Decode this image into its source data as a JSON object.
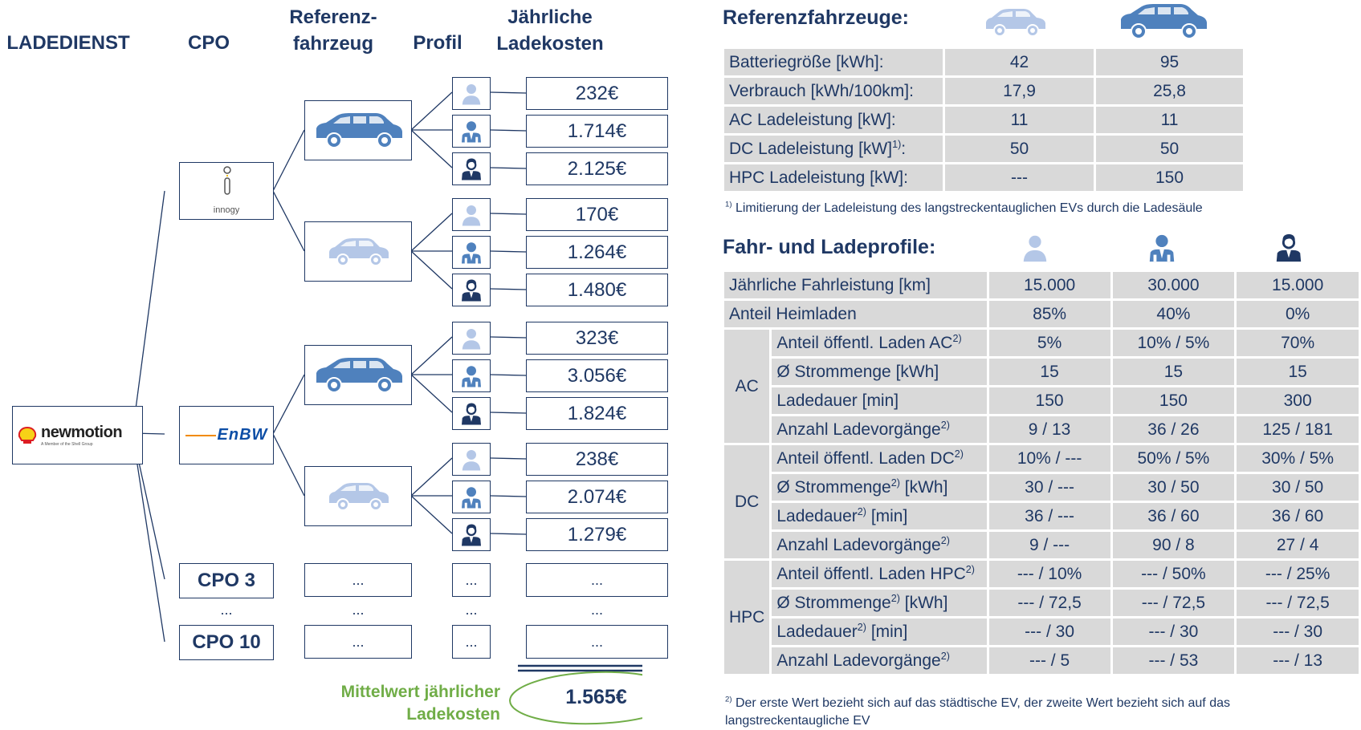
{
  "headers": {
    "ladedienst": "LADEDIENST",
    "cpo": "CPO",
    "fahrzeug": "Referenz-\nfahrzeug",
    "profil": "Profil",
    "kosten": "Jährliche\nLadekosten"
  },
  "ladedienst_logo": {
    "name": "newmotion",
    "tagline": "A Member of the Shell Group"
  },
  "cpos": [
    {
      "logo": "innogy"
    },
    {
      "logo": "EnBW"
    },
    {
      "label": "CPO 3"
    },
    {
      "label": "CPO 10"
    }
  ],
  "dots": "...",
  "costs": [
    "232€",
    "1.714€",
    "2.125€",
    "170€",
    "1.264€",
    "1.480€",
    "323€",
    "3.056€",
    "1.824€",
    "238€",
    "2.074€",
    "1.279€"
  ],
  "mean": {
    "label": "Mittelwert jährlicher\nLadekosten",
    "value": "1.565€"
  },
  "vehicles_table": {
    "title": "Referenzfahrzeuge:",
    "rows": [
      {
        "label": "Batteriegröße [kWh]:",
        "values": [
          "42",
          "95"
        ]
      },
      {
        "label": "Verbrauch [kWh/100km]:",
        "values": [
          "17,9",
          "25,8"
        ]
      },
      {
        "label": "AC Ladeleistung [kW]:",
        "values": [
          "11",
          "11"
        ]
      },
      {
        "label": "DC Ladeleistung [kW]",
        "sup": "1)",
        "suffix": ":",
        "values": [
          "50",
          "50"
        ]
      },
      {
        "label": "HPC Ladeleistung [kW]:",
        "values": [
          "---",
          "150"
        ]
      }
    ],
    "footnote_mark": "1)",
    "footnote": " Limitierung der Ladeleistung des langstreckentauglichen EVs durch die Ladesäule"
  },
  "profiles_table": {
    "title": "Fahr- und Ladeprofile:",
    "rows_top": [
      {
        "label": "Jährliche Fahrleistung [km]",
        "values": [
          "15.000",
          "30.000",
          "15.000"
        ]
      },
      {
        "label": "Anteil Heimladen",
        "values": [
          "85%",
          "40%",
          "0%"
        ]
      }
    ],
    "groups": [
      {
        "name": "AC",
        "rows": [
          {
            "label": "Anteil öffentl. Laden AC",
            "sup": "2)",
            "values": [
              "5%",
              "10% / 5%",
              "70%"
            ]
          },
          {
            "label": "Ø Strommenge [kWh]",
            "values": [
              "15",
              "15",
              "15"
            ]
          },
          {
            "label": "Ladedauer [min]",
            "values": [
              "150",
              "150",
              "300"
            ]
          },
          {
            "label": "Anzahl Ladevorgänge",
            "sup": "2)",
            "values": [
              "9 / 13",
              "36 / 26",
              "125 / 181"
            ]
          }
        ]
      },
      {
        "name": "DC",
        "rows": [
          {
            "label": "Anteil öffentl. Laden DC",
            "sup": "2)",
            "values": [
              "10% / ---",
              "50% / 5%",
              "30% / 5%"
            ]
          },
          {
            "label": "Ø Strommenge",
            "sup": "2)",
            "suffix": " [kWh]",
            "values": [
              "30 / ---",
              "30 / 50",
              "30 / 50"
            ]
          },
          {
            "label": "Ladedauer",
            "sup": "2)",
            "suffix": " [min]",
            "values": [
              "36 / ---",
              "36 / 60",
              "36 / 60"
            ]
          },
          {
            "label": "Anzahl Ladevorgänge",
            "sup": "2)",
            "values": [
              "9 / ---",
              "90 / 8",
              "27 / 4"
            ]
          }
        ]
      },
      {
        "name": "HPC",
        "rows": [
          {
            "label": "Anteil öffentl. Laden HPC",
            "sup": "2)",
            "values": [
              "--- / 10%",
              "--- / 50%",
              "--- / 25%"
            ]
          },
          {
            "label": "Ø Strommenge",
            "sup": "2)",
            "suffix": " [kWh]",
            "values": [
              "--- / 72,5",
              "--- / 72,5",
              "--- / 72,5"
            ]
          },
          {
            "label": "Ladedauer",
            "sup": "2)",
            "suffix": " [min]",
            "values": [
              "--- / 30",
              "--- / 30",
              "--- / 30"
            ]
          },
          {
            "label": "Anzahl Ladevorgänge",
            "sup": "2)",
            "values": [
              "--- / 5",
              "--- / 53",
              "--- / 13"
            ]
          }
        ]
      }
    ],
    "footnote_mark": "2)",
    "footnote": " Der erste Wert bezieht sich auf das städtische EV, der zweite Wert bezieht sich auf das\nlangstreckentaugliche EV"
  },
  "colors": {
    "navy": "#1f3864",
    "suv": "#4f81bd",
    "small_car": "#b4c7e7",
    "grey": "#d9d9d9",
    "green": "#70ad47"
  }
}
